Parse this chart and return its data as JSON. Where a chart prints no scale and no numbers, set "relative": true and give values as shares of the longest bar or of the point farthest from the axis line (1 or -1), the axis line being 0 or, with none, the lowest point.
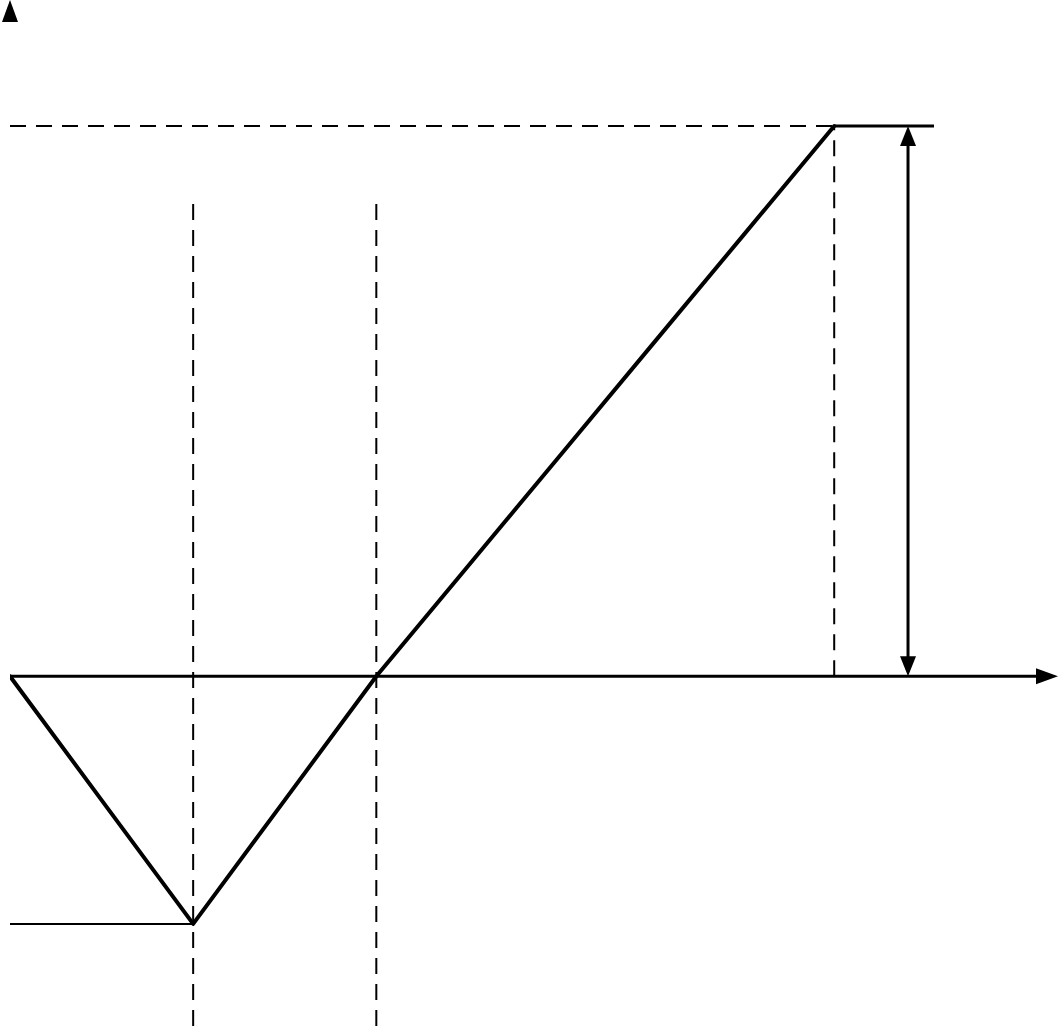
{
  "chart_data": {
    "type": "line",
    "relative": true,
    "color": "#000000",
    "categories": [
      null,
      null,
      null,
      null,
      null,
      null,
      null,
      null,
      null,
      null
    ],
    "values": [
      0,
      -0.225,
      -0.45,
      -0.225,
      0,
      0.2,
      0.4,
      0.6,
      0.8,
      1
    ],
    "ref_lines": [
      {
        "axis": "y",
        "value": -0.45,
        "line_style": "solid"
      }
    ]
  }
}
